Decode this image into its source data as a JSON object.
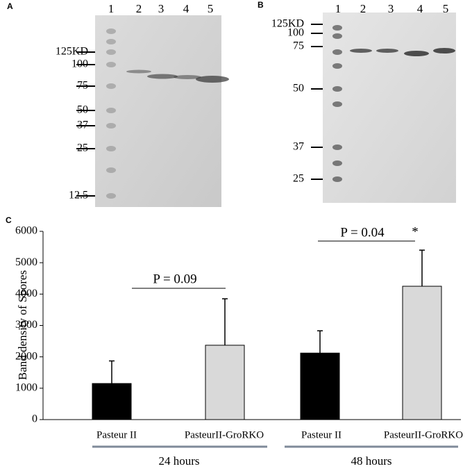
{
  "blots": [
    {
      "label": "A",
      "lanes": [
        "1",
        "2",
        "3",
        "4",
        "5"
      ],
      "markers": [
        "125KD",
        "100",
        "75",
        "50",
        "37",
        "25",
        "12.5"
      ]
    },
    {
      "label": "B",
      "lanes": [
        "1",
        "2",
        "3",
        "4",
        "5"
      ],
      "markers": [
        "125KD",
        "100",
        "75",
        "50",
        "37",
        "25"
      ]
    }
  ],
  "chart_data": {
    "type": "bar",
    "panel_label": "C",
    "y_label": "Band density of Spores",
    "categories": [
      "Pasteur II",
      "PasteurII-GroRKO",
      "Pasteur II",
      "PasteurII-GroRKO"
    ],
    "groups": [
      "24 hours",
      "48 hours"
    ],
    "values": [
      1150,
      2370,
      2120,
      4250
    ],
    "errors": [
      720,
      1480,
      710,
      1150
    ],
    "colors": [
      "#000000",
      "#d9d9d9",
      "#000000",
      "#d9d9d9"
    ],
    "ylim": [
      0,
      6000
    ],
    "yticks": [
      0,
      1000,
      2000,
      3000,
      4000,
      5000,
      6000
    ],
    "grid": false,
    "annotations": [
      "P = 0.09",
      "P = 0.04",
      "*"
    ]
  }
}
